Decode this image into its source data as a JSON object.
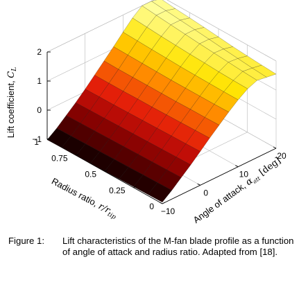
{
  "chart_data": {
    "type": "surface",
    "title": "",
    "x_axis": {
      "label_text": "Angle of attack, ",
      "label_symbol": "α",
      "label_subscript": "att",
      "label_unit": " [deg]",
      "range": [
        -10,
        20
      ],
      "ticks": [
        "−10",
        "0",
        "10",
        "20"
      ]
    },
    "y_axis": {
      "label_text": "Radius ratio, ",
      "label_symbol": "r/r",
      "label_subscript": "tip",
      "range": [
        0,
        1
      ],
      "ticks": [
        "0",
        "0.25",
        "0.5",
        "0.75",
        "1"
      ]
    },
    "z_axis": {
      "label_text": "Lift coefficient, ",
      "label_symbol": "C",
      "label_subscript": "L",
      "range": [
        -1,
        2
      ],
      "ticks": [
        "−1",
        "0",
        "1",
        "2"
      ]
    },
    "colormap": [
      "#000000",
      "#7a0000",
      "#e0140a",
      "#ff7a00",
      "#ffe300",
      "#ffffa0"
    ],
    "grid": true,
    "angle_of_attack_deg": [
      -10,
      -7.5,
      -5,
      -2.5,
      0,
      2.5,
      5,
      7.5,
      10,
      12.5,
      15,
      17.5,
      20
    ],
    "radius_ratio": [
      0,
      0.125,
      0.25,
      0.375,
      0.5,
      0.625,
      0.75,
      0.875,
      1
    ],
    "lift_coefficient": [
      [
        -0.95,
        -0.7,
        -0.42,
        -0.14,
        0.16,
        0.46,
        0.75,
        1.04,
        1.3,
        1.52,
        1.65,
        1.6,
        1.55
      ],
      [
        -0.96,
        -0.71,
        -0.43,
        -0.15,
        0.15,
        0.45,
        0.74,
        1.03,
        1.3,
        1.53,
        1.68,
        1.64,
        1.58
      ],
      [
        -0.97,
        -0.72,
        -0.44,
        -0.16,
        0.14,
        0.44,
        0.74,
        1.03,
        1.31,
        1.55,
        1.72,
        1.69,
        1.62
      ],
      [
        -0.98,
        -0.73,
        -0.45,
        -0.17,
        0.13,
        0.43,
        0.73,
        1.03,
        1.32,
        1.58,
        1.76,
        1.74,
        1.66
      ],
      [
        -0.99,
        -0.74,
        -0.46,
        -0.18,
        0.12,
        0.42,
        0.73,
        1.03,
        1.33,
        1.6,
        1.8,
        1.8,
        1.72
      ],
      [
        -1.0,
        -0.75,
        -0.47,
        -0.19,
        0.11,
        0.42,
        0.73,
        1.04,
        1.35,
        1.63,
        1.85,
        1.85,
        1.77
      ],
      [
        -1.0,
        -0.76,
        -0.48,
        -0.2,
        0.1,
        0.41,
        0.73,
        1.05,
        1.37,
        1.66,
        1.9,
        1.9,
        1.82
      ],
      [
        -1.01,
        -0.77,
        -0.49,
        -0.21,
        0.1,
        0.41,
        0.73,
        1.06,
        1.39,
        1.7,
        1.95,
        1.95,
        1.86
      ],
      [
        -1.02,
        -0.78,
        -0.5,
        -0.22,
        0.09,
        0.41,
        0.74,
        1.07,
        1.41,
        1.74,
        2.0,
        2.0,
        1.92
      ]
    ]
  },
  "caption": {
    "label": "Figure 1:",
    "text": "Lift characteristics of the M-fan blade profile as a function of angle of attack and radius ratio. Adapted from [18]."
  }
}
